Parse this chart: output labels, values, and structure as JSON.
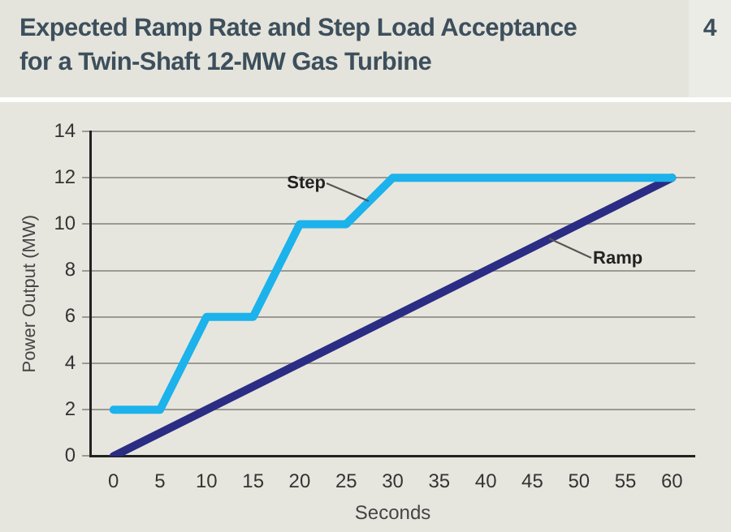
{
  "chart_data": {
    "type": "line",
    "title": "Expected Ramp Rate and Step Load Acceptance for a Twin-Shaft 12-MW Gas Turbine",
    "annotations": [
      "4"
    ],
    "xlabel": "Seconds",
    "ylabel": "Power Output (MW)",
    "series": [
      {
        "name": "Step",
        "color": "#1cb2ec",
        "x": [
          0,
          5,
          10,
          15,
          20,
          25,
          30,
          60
        ],
        "values": [
          2,
          2,
          6,
          6,
          10,
          10,
          12,
          12
        ]
      },
      {
        "name": "Ramp",
        "color": "#2b2c84",
        "x": [
          0,
          60
        ],
        "values": [
          0,
          12
        ]
      }
    ],
    "xlim": [
      -2.5,
      62.5
    ],
    "xticks": [
      0,
      5,
      10,
      15,
      20,
      25,
      30,
      35,
      40,
      45,
      50,
      55,
      60
    ],
    "ylim": [
      0,
      14
    ],
    "yticks": [
      0,
      2,
      4,
      6,
      8,
      10,
      12,
      14
    ],
    "grid": "y",
    "legend": false,
    "marker": "none",
    "line_style": "solid"
  }
}
